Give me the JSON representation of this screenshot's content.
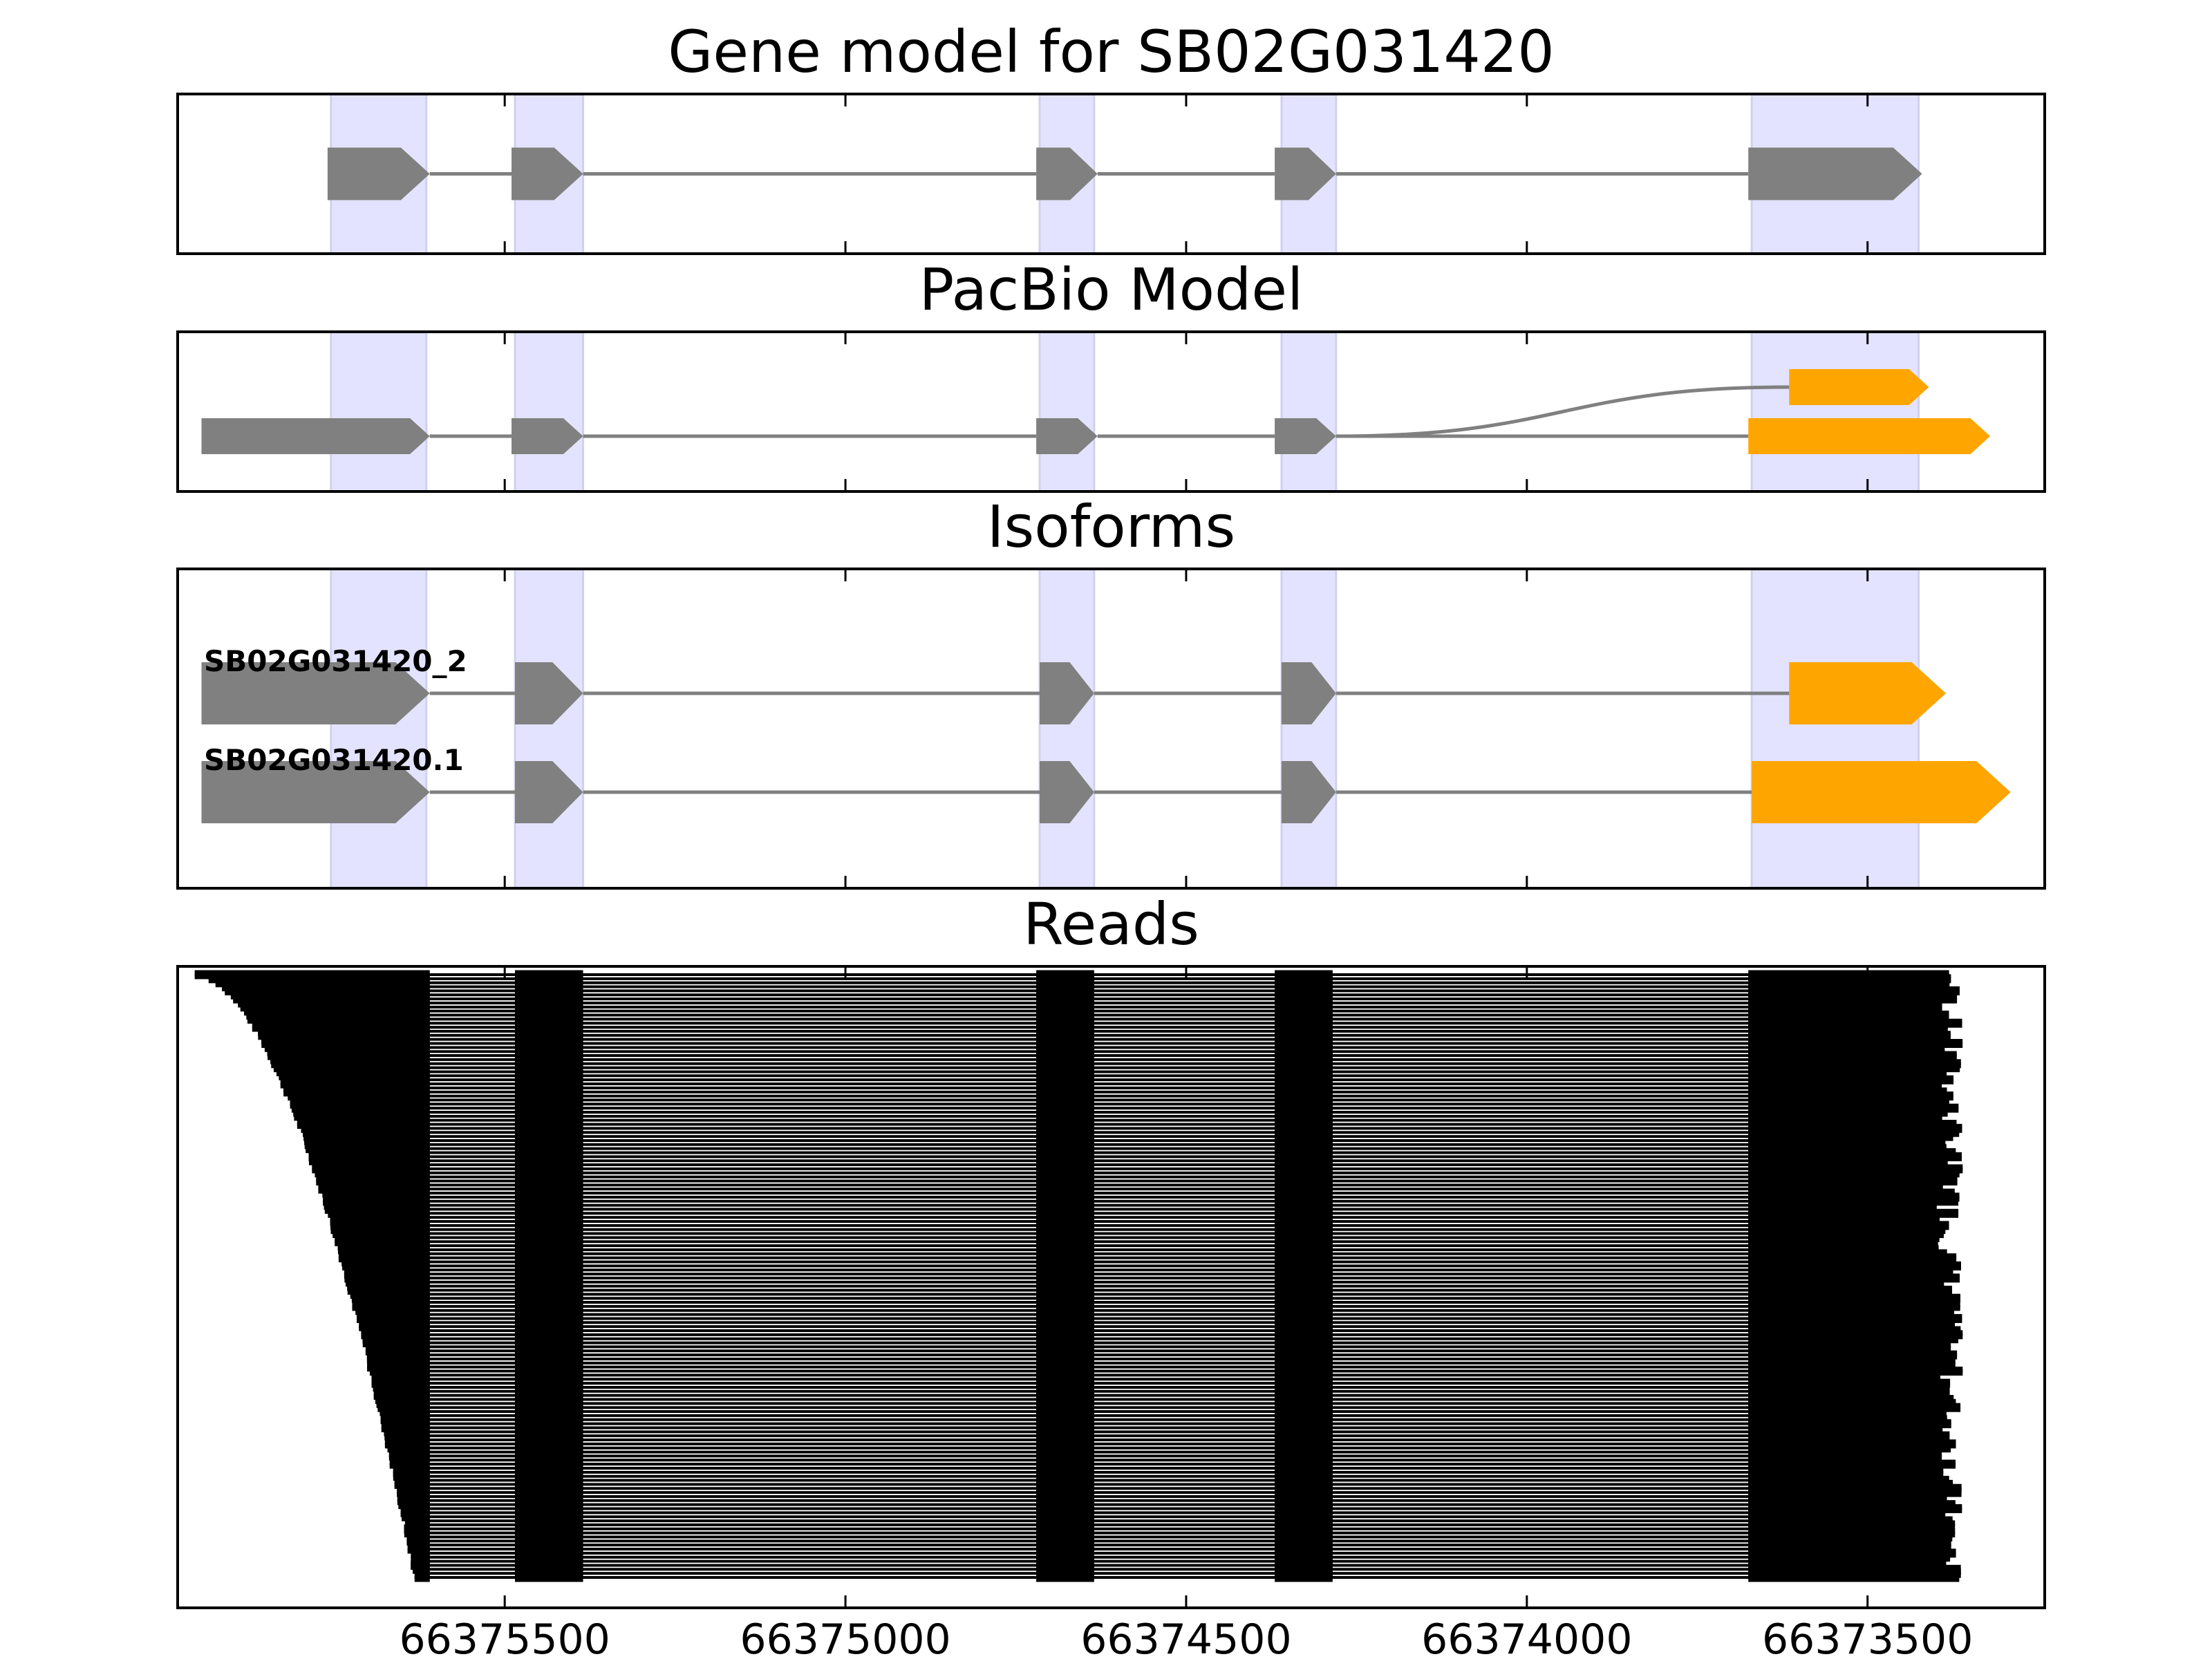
{
  "chart_data": {
    "type": "gene-structure",
    "xaxis": {
      "reversed": true,
      "range": [
        66375980,
        66373240
      ],
      "ticks": [
        66375500,
        66375000,
        66374500,
        66374000,
        66373500
      ],
      "tick_labels": [
        "66375500",
        "66375000",
        "66374500",
        "66374000",
        "66373500"
      ]
    },
    "exon_highlights": [
      [
        66375755,
        66375615
      ],
      [
        66375485,
        66375385
      ],
      [
        66374715,
        66374635
      ],
      [
        66374360,
        66374280
      ],
      [
        66373670,
        66373425
      ]
    ],
    "colors": {
      "exon": "#808080",
      "intron": "#808080",
      "alternative_exon": "#FFA500",
      "highlight": "#E3E3FF",
      "read": "#000000",
      "frame": "#000000"
    },
    "panels": [
      {
        "title": "Gene model for SB02G031420",
        "kind": "gene_model",
        "tracks": [
          {
            "exons": [
              [
                66375760,
                66375610
              ],
              [
                66375490,
                66375385
              ],
              [
                66374720,
                66374630
              ],
              [
                66374370,
                66374280
              ],
              [
                66373675,
                66373420
              ]
            ],
            "exon_colors": [
              "#808080",
              "#808080",
              "#808080",
              "#808080",
              "#808080"
            ]
          }
        ]
      },
      {
        "title": "PacBio Model",
        "kind": "pacbio",
        "tracks": [
          {
            "exons": [
              [
                66375945,
                66375610
              ],
              [
                66375490,
                66375385
              ],
              [
                66374720,
                66374630
              ],
              [
                66374370,
                66374280
              ],
              [
                66373675,
                66373320
              ]
            ],
            "exon_colors": [
              "#808080",
              "#808080",
              "#808080",
              "#808080",
              "#FFA500"
            ]
          },
          {
            "exons": [
              [
                66373615,
                66373410
              ]
            ],
            "exon_colors": [
              "#FFA500"
            ],
            "branch_from": 66374280
          }
        ]
      },
      {
        "title": "Isoforms",
        "kind": "isoforms",
        "tracks": [
          {
            "name": "SB02G031420_2",
            "exons": [
              [
                66375945,
                66375610
              ],
              [
                66375485,
                66375385
              ],
              [
                66374715,
                66374635
              ],
              [
                66374360,
                66374280
              ],
              [
                66373615,
                66373385
              ]
            ],
            "exon_colors": [
              "#808080",
              "#808080",
              "#808080",
              "#808080",
              "#FFA500"
            ]
          },
          {
            "name": "SB02G031420.1",
            "exons": [
              [
                66375945,
                66375610
              ],
              [
                66375485,
                66375385
              ],
              [
                66374715,
                66374635
              ],
              [
                66374360,
                66374280
              ],
              [
                66373670,
                66373290
              ]
            ],
            "exon_colors": [
              "#808080",
              "#808080",
              "#808080",
              "#808080",
              "#FFA500"
            ]
          }
        ]
      },
      {
        "title": "Reads",
        "kind": "reads",
        "read_count": 150,
        "read_start_range": [
          66375955,
          66375635
        ],
        "read_end_range": [
          66373400,
          66373360
        ],
        "exon_blocks": [
          [
            66375610,
            null
          ],
          [
            66375485,
            66375385
          ],
          [
            66374720,
            66374635
          ],
          [
            66374370,
            66374285
          ],
          [
            66373675,
            null
          ]
        ]
      }
    ]
  }
}
